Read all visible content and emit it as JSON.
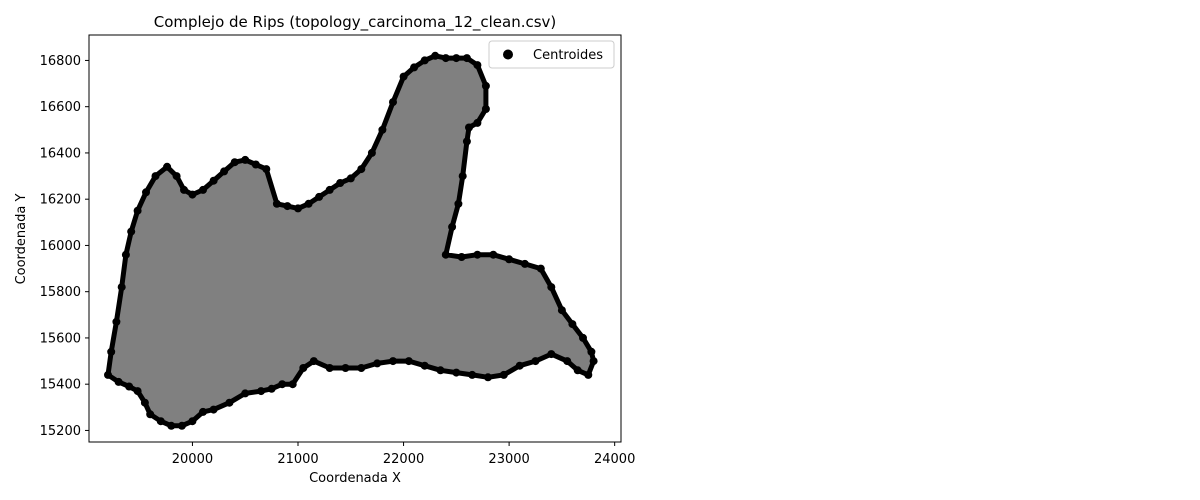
{
  "chart_data": {
    "type": "scatter",
    "title": "Complejo de Rips (topology_carcinoma_12_clean.csv)",
    "xlabel": "Coordenada X",
    "ylabel": "Coordenada Y",
    "xlim": [
      19020,
      24060
    ],
    "ylim": [
      15150,
      16910
    ],
    "xticks": [
      20000,
      21000,
      22000,
      23000,
      24000
    ],
    "yticks": [
      15200,
      15400,
      15600,
      15800,
      16000,
      16200,
      16400,
      16600,
      16800
    ],
    "xtick_labels": [
      "20000",
      "21000",
      "22000",
      "23000",
      "24000"
    ],
    "ytick_labels": [
      "15200",
      "15400",
      "15600",
      "15800",
      "16000",
      "16200",
      "16400",
      "16600",
      "16800"
    ],
    "grid": false,
    "legend": {
      "entries": [
        "Centroides"
      ],
      "placement": "top-right"
    },
    "series": [
      {
        "name": "Centroides",
        "marker_color": "#000000",
        "fill_color": "#808080",
        "points": [
          [
            19200,
            15440
          ],
          [
            19230,
            15540
          ],
          [
            19280,
            15670
          ],
          [
            19330,
            15820
          ],
          [
            19370,
            15960
          ],
          [
            19420,
            16060
          ],
          [
            19480,
            16150
          ],
          [
            19560,
            16230
          ],
          [
            19650,
            16300
          ],
          [
            19760,
            16340
          ],
          [
            19850,
            16300
          ],
          [
            19920,
            16240
          ],
          [
            20000,
            16220
          ],
          [
            20100,
            16240
          ],
          [
            20200,
            16280
          ],
          [
            20300,
            16320
          ],
          [
            20400,
            16360
          ],
          [
            20500,
            16370
          ],
          [
            20600,
            16350
          ],
          [
            20700,
            16330
          ],
          [
            20800,
            16180
          ],
          [
            20900,
            16170
          ],
          [
            21000,
            16160
          ],
          [
            21100,
            16180
          ],
          [
            21200,
            16210
          ],
          [
            21300,
            16240
          ],
          [
            21400,
            16270
          ],
          [
            21500,
            16290
          ],
          [
            21600,
            16330
          ],
          [
            21700,
            16400
          ],
          [
            21800,
            16500
          ],
          [
            21900,
            16620
          ],
          [
            22000,
            16730
          ],
          [
            22100,
            16770
          ],
          [
            22200,
            16800
          ],
          [
            22300,
            16820
          ],
          [
            22400,
            16810
          ],
          [
            22500,
            16810
          ],
          [
            22600,
            16810
          ],
          [
            22700,
            16780
          ],
          [
            22780,
            16690
          ],
          [
            22780,
            16590
          ],
          [
            22700,
            16530
          ],
          [
            22620,
            16510
          ],
          [
            22600,
            16450
          ],
          [
            22560,
            16300
          ],
          [
            22520,
            16180
          ],
          [
            22460,
            16080
          ],
          [
            22400,
            15960
          ],
          [
            22550,
            15950
          ],
          [
            22700,
            15960
          ],
          [
            22850,
            15960
          ],
          [
            23000,
            15940
          ],
          [
            23150,
            15920
          ],
          [
            23300,
            15900
          ],
          [
            23400,
            15820
          ],
          [
            23500,
            15720
          ],
          [
            23600,
            15660
          ],
          [
            23700,
            15600
          ],
          [
            23780,
            15540
          ],
          [
            23800,
            15500
          ],
          [
            23750,
            15440
          ],
          [
            23650,
            15460
          ],
          [
            23550,
            15500
          ],
          [
            23400,
            15530
          ],
          [
            23250,
            15500
          ],
          [
            23100,
            15480
          ],
          [
            22950,
            15440
          ],
          [
            22800,
            15430
          ],
          [
            22650,
            15440
          ],
          [
            22500,
            15450
          ],
          [
            22350,
            15460
          ],
          [
            22200,
            15480
          ],
          [
            22050,
            15500
          ],
          [
            21900,
            15500
          ],
          [
            21750,
            15490
          ],
          [
            21600,
            15470
          ],
          [
            21450,
            15470
          ],
          [
            21300,
            15470
          ],
          [
            21150,
            15500
          ],
          [
            21050,
            15470
          ],
          [
            20950,
            15400
          ],
          [
            20850,
            15400
          ],
          [
            20750,
            15380
          ],
          [
            20650,
            15370
          ],
          [
            20500,
            15360
          ],
          [
            20350,
            15320
          ],
          [
            20200,
            15290
          ],
          [
            20100,
            15280
          ],
          [
            20000,
            15240
          ],
          [
            19900,
            15220
          ],
          [
            19800,
            15220
          ],
          [
            19700,
            15240
          ],
          [
            19600,
            15270
          ],
          [
            19550,
            15320
          ],
          [
            19480,
            15370
          ],
          [
            19400,
            15390
          ],
          [
            19300,
            15410
          ]
        ]
      }
    ]
  }
}
